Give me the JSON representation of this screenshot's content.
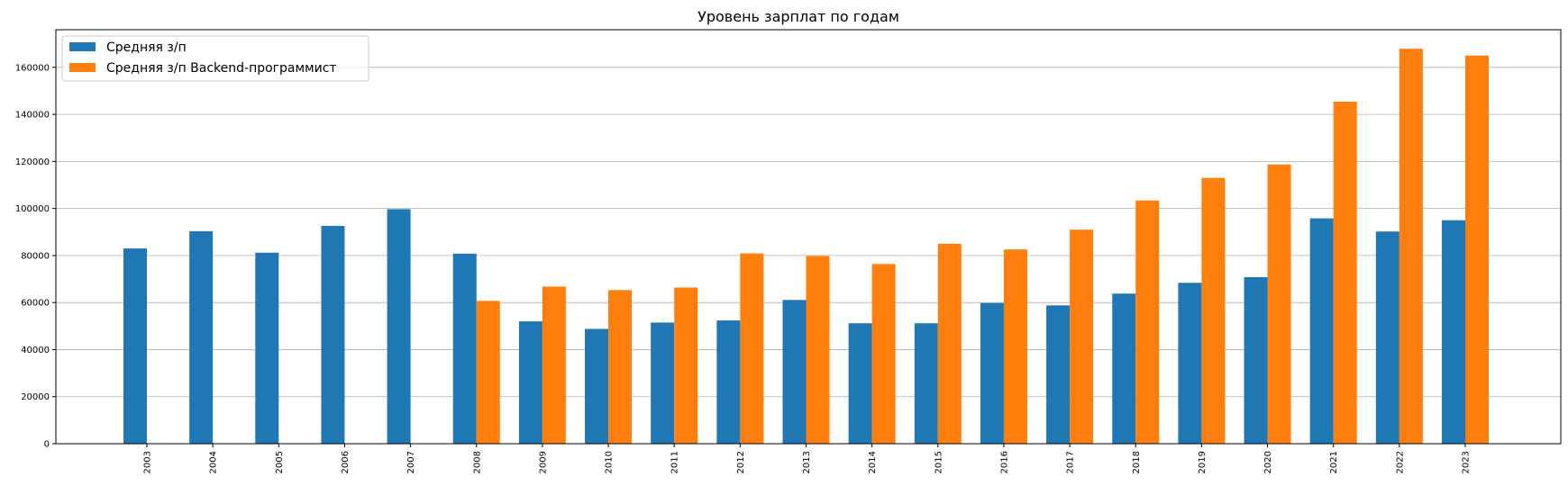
{
  "chart_data": {
    "type": "bar",
    "title": "Уровень зарплат по годам",
    "xlabel": "",
    "ylabel": "",
    "categories": [
      "2003",
      "2004",
      "2005",
      "2006",
      "2007",
      "2008",
      "2009",
      "2010",
      "2011",
      "2012",
      "2013",
      "2014",
      "2015",
      "2016",
      "2017",
      "2018",
      "2019",
      "2020",
      "2021",
      "2022",
      "2023"
    ],
    "series": [
      {
        "name": "Средняя з/п",
        "color": "#1f77b4",
        "values": [
          83000,
          90300,
          81200,
          92600,
          99700,
          80800,
          52000,
          48800,
          51500,
          52400,
          61100,
          51200,
          51200,
          59800,
          58800,
          63800,
          68400,
          70800,
          95800,
          90200,
          95000
        ]
      },
      {
        "name": "Средняя з/п Backend-программист",
        "color": "#ff7f0e",
        "values": [
          null,
          null,
          null,
          null,
          null,
          60700,
          66800,
          65300,
          66400,
          80900,
          79800,
          76400,
          85000,
          82600,
          91000,
          103400,
          113000,
          118700,
          145400,
          167900,
          165000
        ]
      }
    ],
    "ylim": [
      0,
      176000
    ],
    "yticks": [
      0,
      20000,
      40000,
      60000,
      80000,
      100000,
      120000,
      140000,
      160000
    ],
    "grid": "horizontal",
    "legend_position": "top-left"
  }
}
